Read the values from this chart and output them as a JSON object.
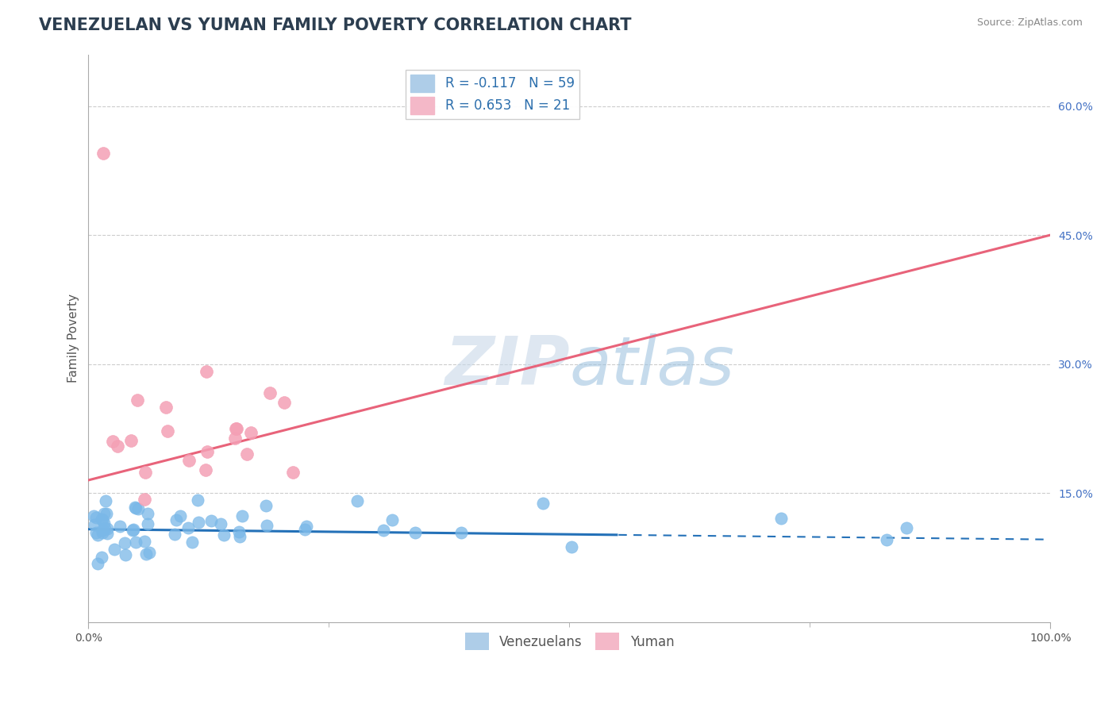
{
  "title": "VENEZUELAN VS YUMAN FAMILY POVERTY CORRELATION CHART",
  "source": "Source: ZipAtlas.com",
  "ylabel": "Family Poverty",
  "xlim": [
    0.0,
    1.0
  ],
  "ylim": [
    0.0,
    0.66
  ],
  "ytick_positions": [
    0.15,
    0.3,
    0.45,
    0.6
  ],
  "ytick_labels": [
    "15.0%",
    "30.0%",
    "45.0%",
    "60.0%"
  ],
  "xtick_positions": [
    0.0,
    1.0
  ],
  "xtick_labels": [
    "0.0%",
    "100.0%"
  ],
  "venezuelan_color": "#7ab8e8",
  "yuman_color": "#f4a0b5",
  "venezuelan_line_color": "#2471b8",
  "yuman_line_color": "#e8637a",
  "R_venezuelan": -0.117,
  "N_venezuelan": 59,
  "R_yuman": 0.653,
  "N_yuman": 21,
  "background_color": "#ffffff",
  "grid_color": "#cccccc",
  "title_color": "#2c3e50",
  "title_fontsize": 15,
  "axis_label_fontsize": 11,
  "tick_fontsize": 10,
  "legend_fontsize": 12,
  "watermark_color": "#c8d8e8",
  "watermark_alpha": 0.6,
  "venezuelan_line_slope": -0.012,
  "venezuelan_line_intercept": 0.108,
  "venezuelan_line_solid_end": 0.55,
  "yuman_line_slope": 0.285,
  "yuman_line_intercept": 0.165
}
